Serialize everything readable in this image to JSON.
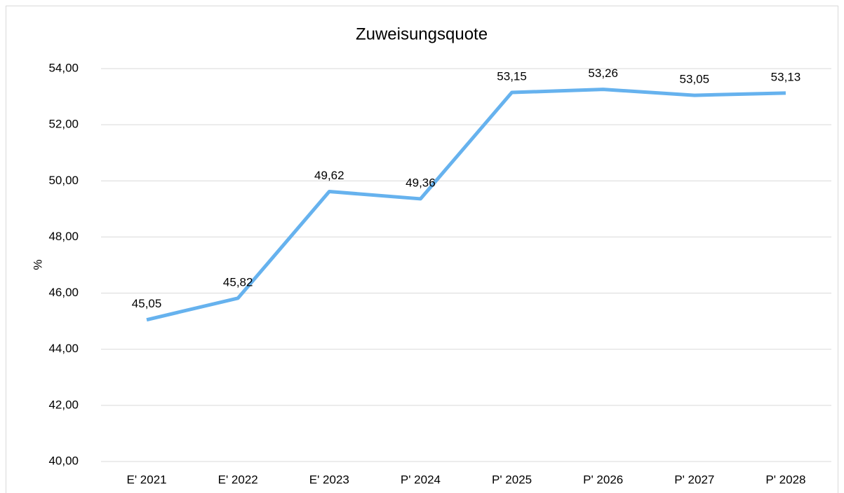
{
  "chart_data": {
    "type": "line",
    "title": "Zuweisungsquote",
    "y_label": "%",
    "categories": [
      "E' 2021",
      "E' 2022",
      "E' 2023",
      "P' 2024",
      "P' 2025",
      "P' 2026",
      "P' 2027",
      "P' 2028"
    ],
    "series": [
      {
        "name": "Zuweisungsquote",
        "color": "#66b2ee",
        "values": [
          45.05,
          45.82,
          49.62,
          49.36,
          53.15,
          53.26,
          53.05,
          53.13
        ],
        "value_labels": [
          "45,05",
          "45,82",
          "49,62",
          "49,36",
          "53,15",
          "53,26",
          "53,05",
          "53,13"
        ]
      }
    ],
    "ylim": [
      40,
      54
    ],
    "yticks": [
      {
        "value": 40,
        "label": "40,00"
      },
      {
        "value": 42,
        "label": "42,00"
      },
      {
        "value": 44,
        "label": "44,00"
      },
      {
        "value": 46,
        "label": "46,00"
      },
      {
        "value": 48,
        "label": "48,00"
      },
      {
        "value": 50,
        "label": "50,00"
      },
      {
        "value": 52,
        "label": "52,00"
      },
      {
        "value": 54,
        "label": "54,00"
      }
    ],
    "grid": true
  }
}
